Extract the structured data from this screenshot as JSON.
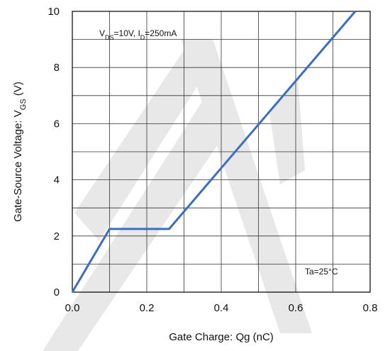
{
  "chart_data": {
    "type": "line",
    "title": "",
    "xlabel": "Gate Charge: Qg (nC)",
    "ylabel": {
      "main": "Gate-Source Voltage: V",
      "sub": "GS",
      "unit": " (V)"
    },
    "xlim": [
      0,
      0.8
    ],
    "ylim": [
      0,
      10
    ],
    "xticks": [
      0,
      0.1,
      0.2,
      0.3,
      0.4,
      0.5,
      0.6,
      0.7,
      0.8
    ],
    "yticks": [
      0,
      1,
      2,
      3,
      4,
      5,
      6,
      7,
      8,
      9,
      10
    ],
    "xtick_labels": [
      "0.0",
      "0.2",
      "0.4",
      "0.6",
      "0.8"
    ],
    "xtick_label_values": [
      0,
      0.2,
      0.4,
      0.6,
      0.8
    ],
    "ytick_labels": [
      "0",
      "2",
      "4",
      "6",
      "8",
      "10"
    ],
    "ytick_label_values": [
      0,
      2,
      4,
      6,
      8,
      10
    ],
    "grid": true,
    "series": [
      {
        "color": "#3a6fbf",
        "x": [
          0,
          0.1,
          0.26,
          0.76
        ],
        "y": [
          0,
          2.25,
          2.25,
          10
        ]
      }
    ],
    "annotations": {
      "condition": {
        "parts": [
          {
            "t": "V",
            "sub": false
          },
          {
            "t": "DS",
            "sub": true
          },
          {
            "t": "=10V, I",
            "sub": false
          },
          {
            "t": "D",
            "sub": true
          },
          {
            "t": "=250mA",
            "sub": false
          }
        ]
      },
      "temperature": "Ta=25°C"
    }
  }
}
